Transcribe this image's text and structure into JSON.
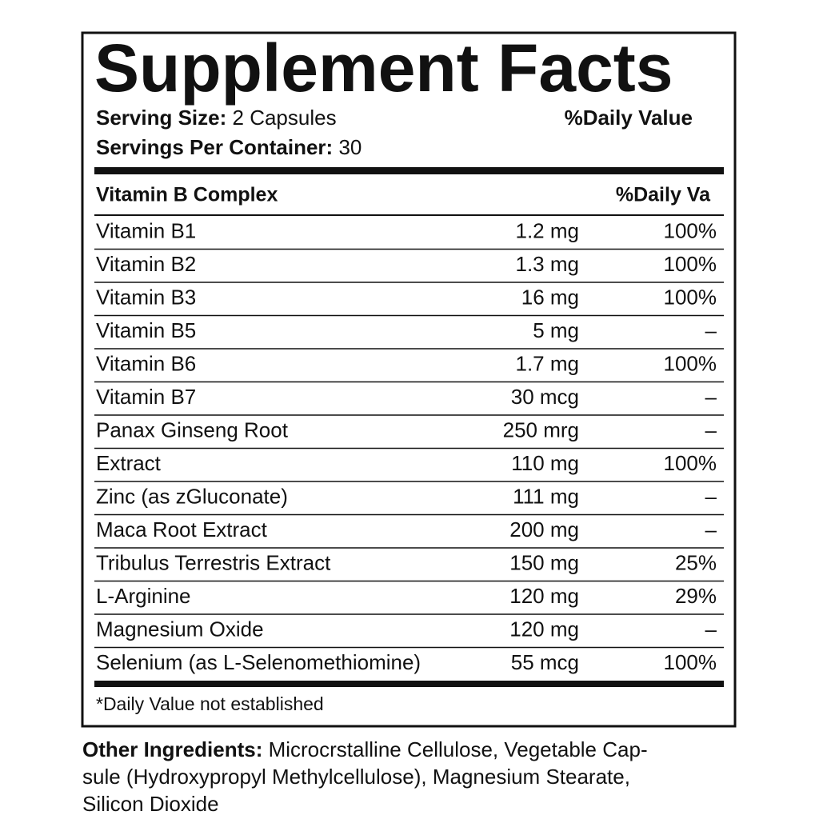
{
  "header": {
    "title": "Supplement Facts",
    "serving_size_label": "Serving Size:",
    "serving_size": "2 Capsules",
    "servings_label": "Servings Per Container:",
    "servings": "30",
    "daily_value_heading": "%Daily Value"
  },
  "table": {
    "section": "Vitamin B Complex",
    "dv_heading": "%Daily Va",
    "rows": [
      [
        "Vitamin B1",
        "1.2 mg",
        "100%"
      ],
      [
        "Vitamin B2",
        "1.3 mg",
        "100%"
      ],
      [
        "Vitamin B3",
        "16 mg",
        "100%"
      ],
      [
        "Vitamin B5",
        "5 mg",
        "–"
      ],
      [
        "Vitamin B6",
        "1.7 mg",
        "100%"
      ],
      [
        "Vitamin B7",
        "30 mcg",
        "–"
      ],
      [
        "Panax Ginseng Root",
        "250 mrg",
        "–"
      ],
      [
        "Extract",
        "110 mg",
        "100%"
      ],
      [
        "Zinc (as zGluconate)",
        "111 mg",
        "–"
      ],
      [
        "Maca Root Extract",
        "200 mg",
        "–"
      ],
      [
        "Tribulus Terrestris Extract",
        "150 mg",
        "25%"
      ],
      [
        "L-Arginine",
        "120 mg",
        "29%"
      ],
      [
        "Magnesium Oxide",
        "120 mg",
        "–"
      ],
      [
        "Selenium (as L-Selenomethiomine)",
        "55 mcg",
        "100%"
      ]
    ]
  },
  "footnote": "*Daily Value not established",
  "other_ingredients": {
    "label": "Other Ingredients:",
    "lines": [
      "Microcrstalline Cellulose, Vegetable Cap-",
      "sule (Hydroxypropyl Methylcellulose), Magnesium Stearate,",
      "Silicon Dioxide"
    ]
  }
}
